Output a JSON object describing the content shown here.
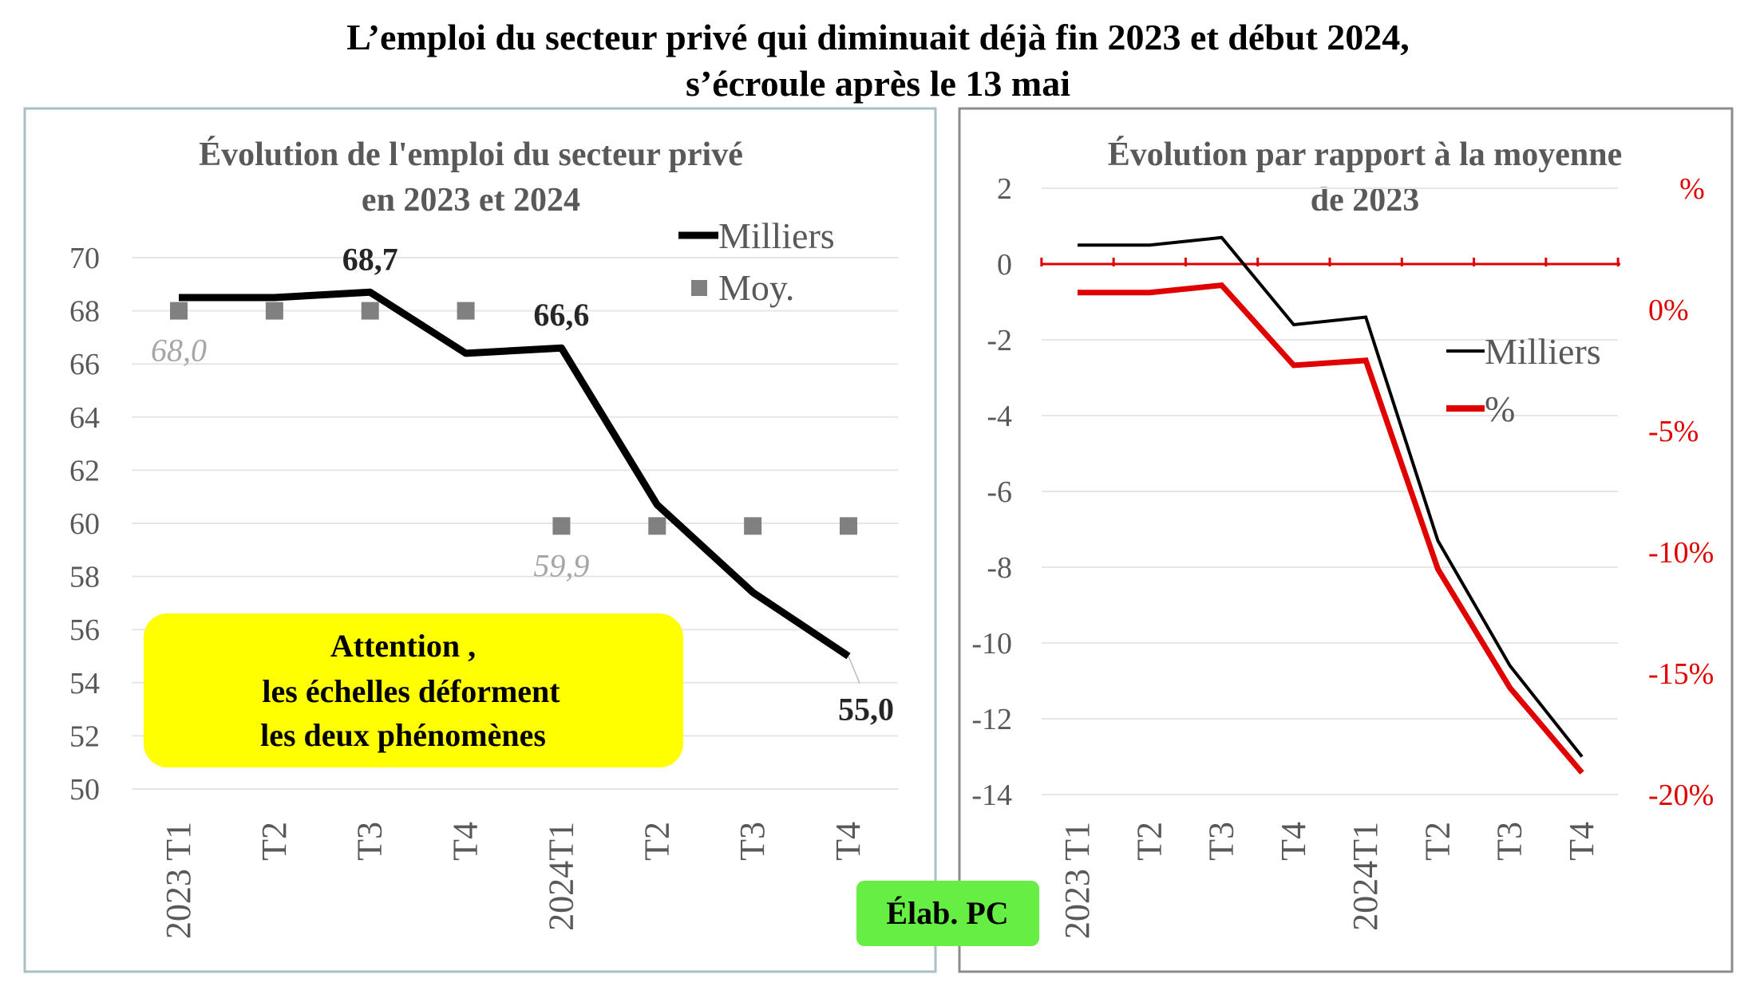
{
  "title": [
    "L’emploi du secteur privé qui diminuait déjà fin 2023 et début 2024,",
    "s’écroule après le 13 mai"
  ],
  "note": [
    "Attention ,",
    "les échelles déforment",
    "les deux phénomènes"
  ],
  "credit": "Élab. PC",
  "colors": {
    "line": "#000000",
    "moy": "#808080",
    "pct": "#e00000",
    "note_bg": "#ffff00",
    "credit_bg": "#66ee44"
  },
  "chart_data": [
    {
      "type": "line",
      "title": [
        "Évolution  de l'emploi du secteur privé",
        "en 2023 et 2024"
      ],
      "categories": [
        "2023 T1",
        "T2",
        "T3",
        "T4",
        "2024T1",
        "T2",
        "T3",
        "T4"
      ],
      "ylim": [
        50,
        70
      ],
      "yticks": [
        "50",
        "52",
        "54",
        "56",
        "58",
        "60",
        "62",
        "64",
        "66",
        "68",
        "70"
      ],
      "grid": true,
      "legend_position": "top-right",
      "series": [
        {
          "name": "Milliers",
          "values": [
            68.5,
            68.5,
            68.7,
            66.4,
            66.6,
            60.7,
            57.4,
            55.0
          ]
        },
        {
          "name": "Moy.",
          "values": [
            68.0,
            68.0,
            68.0,
            68.0,
            59.9,
            59.9,
            59.9,
            59.9
          ]
        }
      ],
      "data_labels": [
        {
          "series": "Milliers",
          "index": 2,
          "text": "68,7"
        },
        {
          "series": "Milliers",
          "index": 4,
          "text": "66,6"
        },
        {
          "series": "Milliers",
          "index": 7,
          "text": "55,0"
        },
        {
          "series": "Moy.",
          "index": 0,
          "text": "68,0"
        },
        {
          "series": "Moy.",
          "index": 4,
          "text": "59,9"
        }
      ]
    },
    {
      "type": "line",
      "title": [
        "Évolution par rapport à la moyenne",
        "de 2023"
      ],
      "categories": [
        "2023 T1",
        "T2",
        "T3",
        "T4",
        "2024T1",
        "T2",
        "T3",
        "T4"
      ],
      "ylim": [
        -14,
        2
      ],
      "yticks": [
        "-14",
        "-12",
        "-10",
        "-8",
        "-6",
        "-4",
        "-2",
        "0",
        "2"
      ],
      "y2lim": [
        -20,
        5
      ],
      "y2ticks": [
        {
          "v": -20,
          "t": "-20%"
        },
        {
          "v": -15,
          "t": "-15%"
        },
        {
          "v": -10,
          "t": "-10%"
        },
        {
          "v": -5,
          "t": "-5%"
        },
        {
          "v": 0,
          "t": "0%"
        },
        {
          "v": 5,
          "t": "%"
        }
      ],
      "grid": true,
      "legend_position": "right",
      "series": [
        {
          "name": "Milliers",
          "axis": "left",
          "values": [
            0.5,
            0.5,
            0.7,
            -1.6,
            -1.4,
            -7.3,
            -10.6,
            -13.0
          ]
        },
        {
          "name": "%",
          "axis": "right",
          "values": [
            0.7,
            0.7,
            1.0,
            -2.3,
            -2.1,
            -10.7,
            -15.6,
            -19.1
          ]
        }
      ]
    }
  ]
}
